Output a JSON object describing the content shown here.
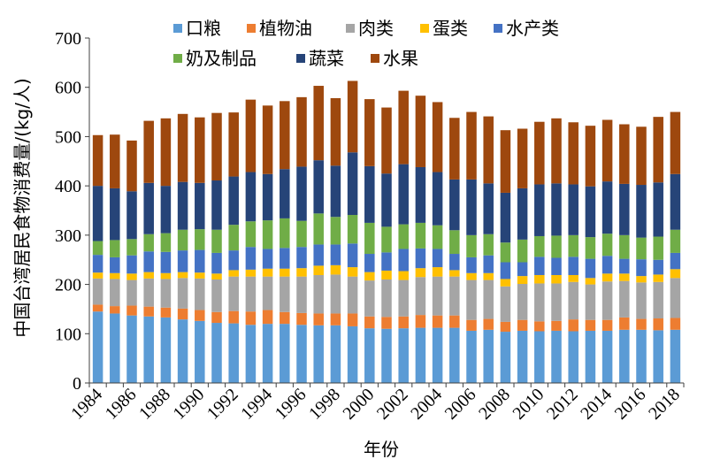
{
  "chart_data": {
    "type": "bar",
    "stacked": true,
    "title": "",
    "xlabel": "年份",
    "ylabel": "中国台湾居民食物消费量/(kg/人)",
    "ylim": [
      0,
      700
    ],
    "yticks": [
      0,
      100,
      200,
      300,
      400,
      500,
      600,
      700
    ],
    "grid": false,
    "legend_position": "top",
    "categories": [
      "1984",
      "1985",
      "1986",
      "1987",
      "1988",
      "1989",
      "1990",
      "1991",
      "1992",
      "1993",
      "1994",
      "1995",
      "1996",
      "1997",
      "1998",
      "1999",
      "2000",
      "2001",
      "2002",
      "2003",
      "2004",
      "2005",
      "2006",
      "2007",
      "2008",
      "2009",
      "2010",
      "2011",
      "2012",
      "2013",
      "2014",
      "2015",
      "2016",
      "2017",
      "2018"
    ],
    "x_tick_labels": [
      "1984",
      "1986",
      "1988",
      "1990",
      "1992",
      "1994",
      "1996",
      "1998",
      "2000",
      "2002",
      "2004",
      "2006",
      "2008",
      "2010",
      "2012",
      "2014",
      "2016",
      "2018"
    ],
    "series": [
      {
        "name": "口粮",
        "color": "#5B9BD5",
        "values": [
          145,
          141,
          137,
          135,
          133,
          129,
          126,
          122,
          121,
          118,
          120,
          120,
          118,
          117,
          117,
          115,
          111,
          110,
          111,
          112,
          112,
          112,
          106,
          108,
          104,
          106,
          105,
          106,
          105,
          106,
          106,
          108,
          108,
          107,
          108
        ]
      },
      {
        "name": "植物油",
        "color": "#ED7D31",
        "values": [
          14,
          15,
          20,
          20,
          20,
          22,
          22,
          22,
          25,
          27,
          28,
          24,
          24,
          24,
          24,
          26,
          24,
          24,
          24,
          26,
          25,
          25,
          22,
          22,
          20,
          22,
          20,
          20,
          24,
          22,
          22,
          25,
          22,
          24,
          24
        ]
      },
      {
        "name": "肉类",
        "color": "#A5A5A5",
        "values": [
          53,
          55,
          52,
          57,
          58,
          62,
          64,
          66,
          70,
          71,
          68,
          72,
          74,
          78,
          79,
          75,
          73,
          76,
          74,
          77,
          79,
          79,
          81,
          79,
          72,
          73,
          77,
          76,
          76,
          72,
          78,
          74,
          74,
          74,
          81
        ]
      },
      {
        "name": "蛋类",
        "color": "#FFC000",
        "values": [
          12,
          12,
          13,
          13,
          12,
          12,
          12,
          12,
          13,
          14,
          16,
          16,
          17,
          19,
          19,
          19,
          17,
          18,
          18,
          18,
          19,
          13,
          14,
          14,
          15,
          16,
          17,
          17,
          14,
          13,
          16,
          15,
          13,
          15,
          18
        ]
      },
      {
        "name": "水产类",
        "color": "#4472C4",
        "values": [
          36,
          32,
          37,
          42,
          43,
          44,
          46,
          42,
          40,
          46,
          40,
          42,
          43,
          43,
          42,
          48,
          37,
          37,
          45,
          40,
          37,
          33,
          32,
          36,
          34,
          28,
          37,
          35,
          37,
          39,
          36,
          30,
          34,
          30,
          33
        ]
      },
      {
        "name": "奶及制品",
        "color": "#70AD47",
        "values": [
          28,
          35,
          33,
          35,
          38,
          42,
          42,
          47,
          52,
          52,
          58,
          60,
          53,
          63,
          56,
          58,
          63,
          52,
          50,
          52,
          48,
          48,
          45,
          43,
          40,
          46,
          42,
          45,
          44,
          44,
          45,
          48,
          44,
          47,
          47
        ]
      },
      {
        "name": "蔬菜",
        "color": "#264478",
        "values": [
          112,
          105,
          97,
          104,
          96,
          97,
          94,
          100,
          98,
          100,
          94,
          100,
          110,
          108,
          104,
          127,
          115,
          108,
          122,
          113,
          108,
          103,
          113,
          103,
          101,
          104,
          105,
          106,
          103,
          103,
          106,
          104,
          107,
          110,
          113
        ]
      },
      {
        "name": "水果",
        "color": "#9E480E",
        "values": [
          103,
          109,
          103,
          126,
          137,
          138,
          133,
          137,
          130,
          147,
          139,
          138,
          141,
          151,
          137,
          145,
          136,
          134,
          149,
          145,
          142,
          125,
          137,
          136,
          127,
          121,
          127,
          132,
          126,
          123,
          125,
          121,
          118,
          133,
          126
        ]
      }
    ]
  }
}
